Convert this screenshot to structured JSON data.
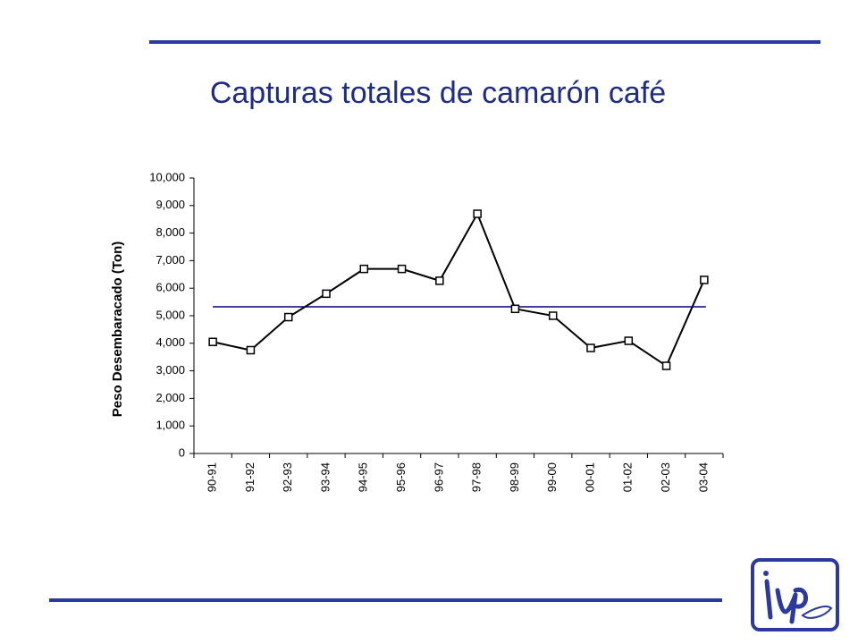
{
  "chart_data": {
    "type": "line",
    "title": "Capturas totales de camarón café",
    "y_label": "Peso Desembaracado (Ton)",
    "categories": [
      "90-91",
      "91-92",
      "92-93",
      "93-94",
      "94-95",
      "95-96",
      "96-97",
      "97-98",
      "98-99",
      "99-00",
      "00-01",
      "01-02",
      "02-03",
      "03-04"
    ],
    "series": [
      {
        "color": "#000000",
        "values": [
          4050,
          3750,
          4950,
          5800,
          6700,
          6700,
          6270,
          8700,
          5250,
          5000,
          3830,
          4090,
          3180,
          6300
        ]
      }
    ],
    "hline": {
      "value": 5326,
      "color": "#000080"
    },
    "ylim": [
      0,
      10000
    ],
    "yticks": [
      0,
      {
        "value": 1000,
        "label": "1,000"
      },
      {
        "value": 2000,
        "label": "2,000"
      },
      {
        "value": 3000,
        "label": "3,000"
      },
      {
        "value": 4000,
        "label": "4,000"
      },
      {
        "value": 5000,
        "label": "5,000"
      },
      {
        "value": 6000,
        "label": "6,000"
      },
      {
        "value": 7000,
        "label": "7,000"
      },
      {
        "value": 8000,
        "label": "8,000"
      },
      {
        "value": 9000,
        "label": "9,000"
      },
      {
        "value": 10000,
        "label": "10,000"
      }
    ],
    "grid": false
  }
}
